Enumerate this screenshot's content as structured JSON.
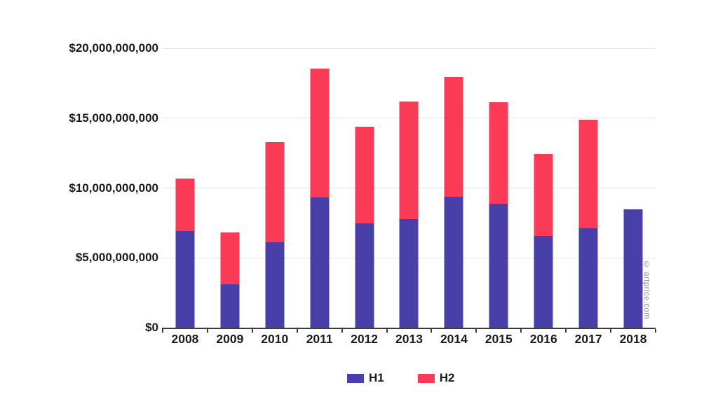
{
  "watermark": "© artprice.com",
  "colors": {
    "h1": "#4840A8",
    "h2": "#FB3B55",
    "grid": "#e3e3e3",
    "axis": "#3c3c3c",
    "text": "#1b1b1b",
    "watermark_text": "#8c8c8c"
  },
  "legend": {
    "items": [
      {
        "label": "H1",
        "color": "#4840A8"
      },
      {
        "label": "H2",
        "color": "#FB3B55"
      }
    ]
  },
  "chart_data": {
    "type": "bar",
    "stacked": true,
    "title": "",
    "categories": [
      "2008",
      "2009",
      "2010",
      "2011",
      "2012",
      "2013",
      "2014",
      "2015",
      "2016",
      "2017",
      "2018"
    ],
    "series": [
      {
        "name": "H1",
        "color": "#4840A8",
        "values": [
          6900000000,
          3100000000,
          6100000000,
          9300000000,
          7450000000,
          7750000000,
          9350000000,
          8850000000,
          6550000000,
          7100000000,
          8450000000
        ]
      },
      {
        "name": "H2",
        "color": "#FB3B55",
        "values": [
          3800000000,
          3700000000,
          7200000000,
          9250000000,
          6950000000,
          8450000000,
          8600000000,
          7300000000,
          5900000000,
          7800000000,
          0
        ]
      }
    ],
    "y_axis": {
      "min": 0,
      "max": 20000000000,
      "tick_interval": 5000000000,
      "tick_labels": [
        "$0",
        "$5,000,000,000",
        "$10,000,000,000",
        "$15,000,000,000",
        "$20,000,000,000"
      ]
    },
    "grid": true,
    "legend_position": "bottom",
    "xlabel": "",
    "ylabel": ""
  }
}
